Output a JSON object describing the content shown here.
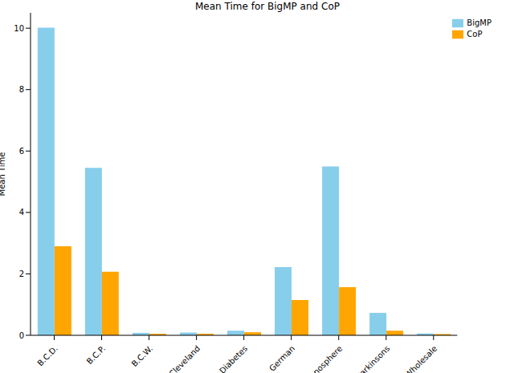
{
  "chart_data": {
    "type": "bar",
    "title": "Mean Time for BigMP and CoP",
    "y_label": "Mean Time",
    "categories": [
      "B.C.D.",
      "B.C.P.",
      "B.C.W.",
      "Cleveland",
      "Diabetes",
      "German",
      "Ionosphere",
      "Parkinsons",
      "Wholesale"
    ],
    "series": [
      {
        "name": "BigMP",
        "color": "#87ceeb",
        "values": [
          10.02,
          5.45,
          0.08,
          0.09,
          0.15,
          2.22,
          5.5,
          0.73,
          0.06
        ]
      },
      {
        "name": "CoP",
        "color": "#ffa500",
        "values": [
          2.9,
          2.07,
          0.05,
          0.05,
          0.1,
          1.15,
          1.57,
          0.15,
          0.04
        ]
      }
    ],
    "ylim": [
      0,
      10.5
    ],
    "yticks": [
      0,
      2,
      4,
      6,
      8,
      10
    ],
    "grid": false,
    "legend": "upper right"
  }
}
